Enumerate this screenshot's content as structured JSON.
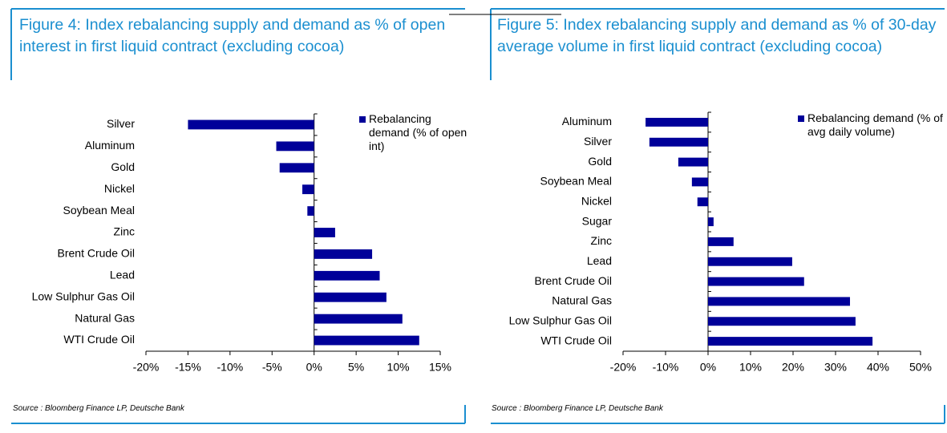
{
  "chart_data": [
    {
      "type": "barh",
      "title": "Figure 4: Index rebalancing supply and demand as % of open interest in first liquid contract (excluding cocoa)",
      "categories": [
        "Silver",
        "Aluminum",
        "Gold",
        "Nickel",
        "Soybean Meal",
        "Zinc",
        "Brent Crude Oil",
        "Lead",
        "Low Sulphur Gas Oil",
        "Natural Gas",
        "WTI Crude Oil"
      ],
      "series": [
        {
          "name": "Rebalancing demand (% of open int)",
          "color": "#000099",
          "values": [
            -15,
            -4.5,
            -4.1,
            -1.4,
            -0.8,
            2.5,
            6.9,
            7.8,
            8.6,
            10.5,
            12.5
          ]
        }
      ],
      "xlim": [
        -20,
        15
      ],
      "xticks": [
        {
          "value": -20,
          "label": "-20%"
        },
        {
          "value": -15,
          "label": "-15%"
        },
        {
          "value": -10,
          "label": "-10%"
        },
        {
          "value": -5,
          "label": "-5%"
        },
        {
          "value": 0,
          "label": "0%"
        },
        {
          "value": 5,
          "label": "5%"
        },
        {
          "value": 10,
          "label": "10%"
        },
        {
          "value": 15,
          "label": "15%"
        }
      ],
      "source": "Source : Bloomberg Finance LP, Deutsche Bank"
    },
    {
      "type": "barh",
      "title": "Figure 5: Index rebalancing supply and demand as % of 30-day average volume in first liquid contract (excluding cocoa)",
      "categories": [
        "Aluminum",
        "Silver",
        "Gold",
        "Soybean Meal",
        "Nickel",
        "Sugar",
        "Zinc",
        "Lead",
        "Brent Crude Oil",
        "Natural Gas",
        "Low Sulphur Gas Oil",
        "WTI Crude Oil"
      ],
      "series": [
        {
          "name": "Rebalancing demand (% of avg daily volume)",
          "color": "#000099",
          "values": [
            -14.7,
            -13.8,
            -7,
            -3.8,
            -2.5,
            1.3,
            6,
            19.8,
            22.6,
            33.4,
            34.7,
            38.7
          ]
        }
      ],
      "xlim": [
        -20,
        50
      ],
      "xticks": [
        {
          "value": -20,
          "label": "-20%"
        },
        {
          "value": -10,
          "label": "-10%"
        },
        {
          "value": 0,
          "label": "0%"
        },
        {
          "value": 10,
          "label": "10%"
        },
        {
          "value": 20,
          "label": "20%"
        },
        {
          "value": 30,
          "label": "30%"
        },
        {
          "value": 40,
          "label": "40%"
        },
        {
          "value": 50,
          "label": "50%"
        }
      ],
      "source": "Source : Bloomberg Finance LP, Deutsche Bank"
    }
  ]
}
